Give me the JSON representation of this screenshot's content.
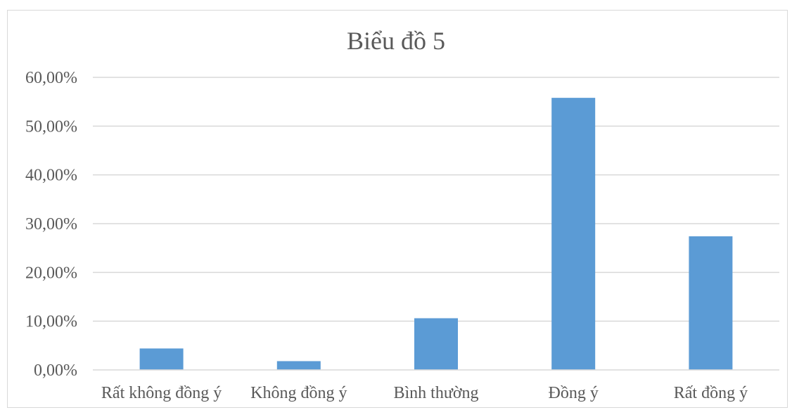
{
  "chart_data": {
    "type": "bar",
    "title": "Biểu đồ 5",
    "categories": [
      "Rất không đồng ý",
      "Không đồng ý",
      "Bình thường",
      "Đồng ý",
      "Rất đồng ý"
    ],
    "values": [
      4.4,
      1.8,
      10.6,
      55.8,
      27.4
    ],
    "ylim": [
      0,
      60
    ],
    "yticks": [
      0,
      10,
      20,
      30,
      40,
      50,
      60
    ],
    "ytick_labels": [
      "0,00%",
      "10,00%",
      "20,00%",
      "30,00%",
      "40,00%",
      "50,00%",
      "60,00%"
    ],
    "xlabel": "",
    "ylabel": "",
    "grid": true,
    "legend": "none",
    "bar_color": "#5b9bd5",
    "grid_color": "#d9d9d9"
  }
}
